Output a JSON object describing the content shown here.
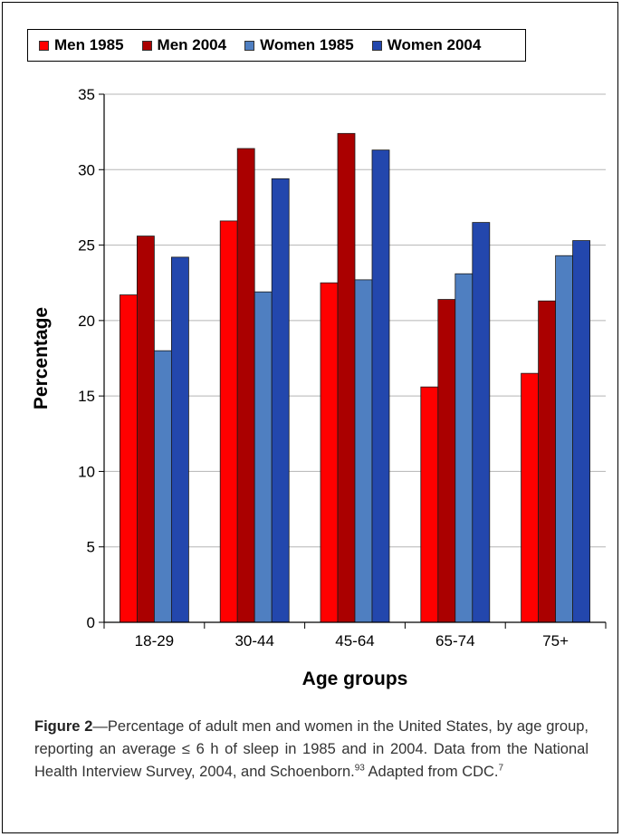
{
  "chart_data": {
    "type": "bar",
    "categories": [
      "18-29",
      "30-44",
      "45-64",
      "65-74",
      "75+"
    ],
    "series": [
      {
        "name": "Men 1985",
        "color": "#ff0000",
        "values": [
          21.7,
          26.6,
          22.5,
          15.6,
          16.5
        ]
      },
      {
        "name": "Men 2004",
        "color": "#aa0000",
        "values": [
          25.6,
          31.4,
          32.4,
          21.4,
          21.3
        ]
      },
      {
        "name": "Women 1985",
        "color": "#4f7fc1",
        "values": [
          18.0,
          21.9,
          22.7,
          23.1,
          24.3
        ]
      },
      {
        "name": "Women 2004",
        "color": "#2347ad",
        "values": [
          24.2,
          29.4,
          31.3,
          26.5,
          25.3
        ]
      }
    ],
    "xlabel": "Age groups",
    "ylabel": "Percentage",
    "ylim": [
      0,
      35
    ],
    "yticks": [
      "0",
      "5",
      "10",
      "15",
      "20",
      "25",
      "30",
      "35"
    ],
    "grid": true,
    "legend_position": "top"
  },
  "caption": {
    "figure_label": "Figure 2",
    "text": "—Percentage of adult men and women in the United States, by age group, reporting an average ≤ 6 h of sleep in 1985 and in 2004. Data from the National Health Interview Survey, 2004, and Schoenborn.",
    "ref1": "93",
    "text2": " Adapted from CDC.",
    "ref2": "7"
  }
}
